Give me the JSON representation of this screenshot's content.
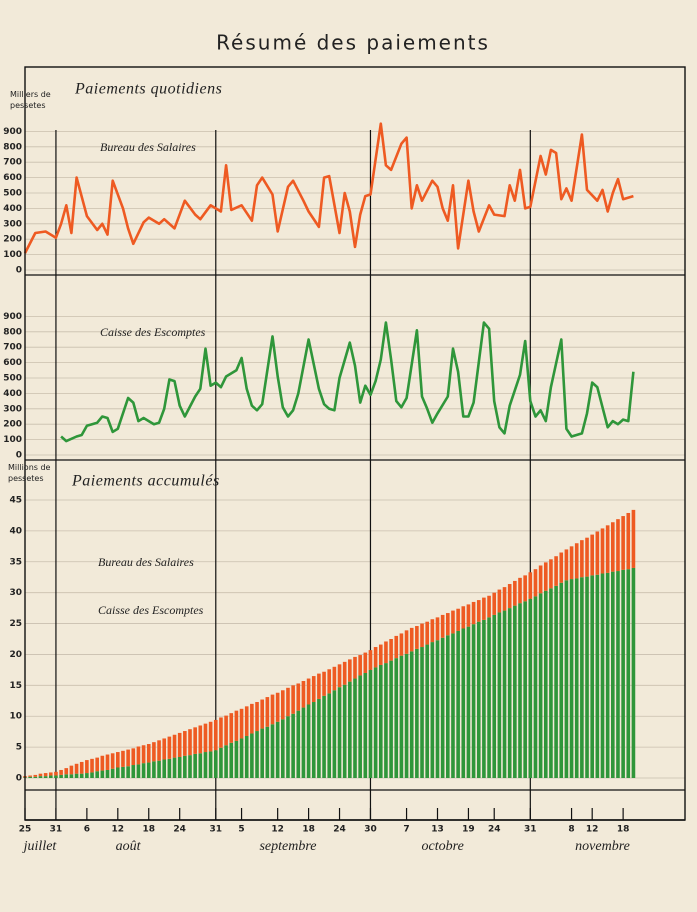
{
  "title": "Résumé des paiements",
  "chart_data": [
    {
      "type": "line",
      "title": "Paiements quotidiens",
      "ylabel": "Milliers de pessetes",
      "xlim": [
        0,
        128
      ],
      "ylim": [
        0,
        1000
      ],
      "yticks": [
        0,
        100,
        200,
        300,
        400,
        500,
        600,
        700,
        800,
        900
      ],
      "grid": true,
      "xgrid": [
        6,
        37,
        67,
        98
      ],
      "series": [
        {
          "name": "Bureau des Salaires",
          "color": "#ee5a22",
          "x": [
            0,
            2,
            4,
            6,
            7,
            8,
            9,
            10,
            12,
            14,
            15,
            16,
            17,
            19,
            20,
            21,
            23,
            24,
            26,
            27,
            29,
            31,
            33,
            34,
            36,
            38,
            39,
            40,
            42,
            44,
            45,
            46,
            48,
            49,
            51,
            52,
            54,
            55,
            57,
            58,
            59,
            61,
            62,
            63,
            64,
            65,
            66,
            67,
            69,
            70,
            71,
            73,
            74,
            75,
            76,
            77,
            79,
            80,
            81,
            82,
            83,
            84,
            86,
            87,
            88,
            90,
            91,
            93,
            94,
            95,
            96,
            97,
            98,
            100,
            101,
            102,
            103,
            104,
            105,
            106,
            108,
            109,
            111,
            112,
            113,
            114,
            115,
            116,
            118
          ],
          "values": [
            110,
            240,
            250,
            210,
            300,
            420,
            240,
            600,
            350,
            260,
            300,
            230,
            580,
            400,
            270,
            170,
            310,
            340,
            300,
            330,
            270,
            450,
            360,
            330,
            420,
            380,
            680,
            390,
            420,
            320,
            550,
            600,
            490,
            250,
            540,
            580,
            450,
            380,
            280,
            600,
            610,
            240,
            500,
            380,
            150,
            360,
            480,
            490,
            950,
            680,
            650,
            820,
            860,
            400,
            550,
            450,
            580,
            540,
            400,
            320,
            550,
            140,
            580,
            380,
            250,
            420,
            360,
            350,
            550,
            450,
            650,
            400,
            410,
            740,
            620,
            780,
            760,
            460,
            530,
            450,
            880,
            520,
            450,
            520,
            380,
            500,
            590,
            460,
            480
          ]
        }
      ]
    },
    {
      "type": "line",
      "xlim": [
        0,
        128
      ],
      "ylim": [
        0,
        1000
      ],
      "yticks": [
        0,
        100,
        200,
        300,
        400,
        500,
        600,
        700,
        800,
        900
      ],
      "grid": true,
      "xgrid": [
        6,
        37,
        67,
        98
      ],
      "series": [
        {
          "name": "Caisse des Escomptes",
          "color": "#2f963a",
          "x": [
            7,
            8,
            10,
            11,
            12,
            14,
            15,
            16,
            17,
            18,
            20,
            21,
            22,
            23,
            25,
            26,
            27,
            28,
            29,
            30,
            31,
            33,
            34,
            35,
            36,
            37,
            38,
            39,
            41,
            42,
            43,
            44,
            45,
            46,
            48,
            49,
            50,
            51,
            52,
            53,
            55,
            57,
            58,
            59,
            60,
            61,
            63,
            64,
            65,
            66,
            67,
            68,
            69,
            70,
            71,
            72,
            73,
            74,
            76,
            77,
            78,
            79,
            80,
            82,
            83,
            84,
            85,
            86,
            87,
            89,
            90,
            91,
            92,
            93,
            94,
            96,
            97,
            98,
            99,
            100,
            101,
            102,
            104,
            105,
            106,
            108,
            109,
            110,
            111,
            113,
            114,
            115,
            116,
            117,
            118
          ],
          "values": [
            120,
            90,
            120,
            130,
            190,
            210,
            250,
            240,
            150,
            170,
            370,
            340,
            220,
            240,
            200,
            210,
            300,
            490,
            480,
            320,
            250,
            380,
            430,
            690,
            450,
            470,
            440,
            510,
            550,
            630,
            430,
            320,
            290,
            330,
            770,
            510,
            310,
            250,
            290,
            400,
            750,
            430,
            330,
            300,
            290,
            500,
            730,
            580,
            340,
            450,
            390,
            480,
            620,
            860,
            620,
            350,
            310,
            370,
            810,
            380,
            300,
            210,
            270,
            380,
            690,
            540,
            250,
            250,
            340,
            860,
            820,
            350,
            180,
            140,
            320,
            520,
            740,
            350,
            250,
            290,
            220,
            440,
            750,
            170,
            120,
            140,
            270,
            470,
            440,
            180,
            220,
            200,
            230,
            220,
            540
          ]
        }
      ]
    },
    {
      "type": "bar",
      "stacked": true,
      "title": "Paiements accumulés",
      "ylabel": "Millions de pessetes",
      "xlim": [
        0,
        128
      ],
      "ylim": [
        0,
        45
      ],
      "yticks": [
        0,
        5,
        10,
        15,
        20,
        25,
        30,
        35,
        40,
        45
      ],
      "grid": true,
      "xgrid": [
        6,
        37,
        67,
        98
      ],
      "xticks": [
        {
          "value": 0,
          "label": "25"
        },
        {
          "value": 6,
          "label": "31"
        },
        {
          "value": 12,
          "label": "6"
        },
        {
          "value": 18,
          "label": "12"
        },
        {
          "value": 24,
          "label": "18"
        },
        {
          "value": 30,
          "label": "24"
        },
        {
          "value": 37,
          "label": "31"
        },
        {
          "value": 42,
          "label": "5"
        },
        {
          "value": 49,
          "label": "12"
        },
        {
          "value": 55,
          "label": "18"
        },
        {
          "value": 61,
          "label": "24"
        },
        {
          "value": 67,
          "label": "30"
        },
        {
          "value": 74,
          "label": "7"
        },
        {
          "value": 80,
          "label": "13"
        },
        {
          "value": 86,
          "label": "19"
        },
        {
          "value": 91,
          "label": "24"
        },
        {
          "value": 98,
          "label": "31"
        },
        {
          "value": 106,
          "label": "8"
        },
        {
          "value": 110,
          "label": "12"
        },
        {
          "value": 116,
          "label": "18"
        }
      ],
      "month_labels": [
        {
          "value": 1,
          "label": "juillet"
        },
        {
          "value": 20,
          "label": "août"
        },
        {
          "value": 51,
          "label": "septembre"
        },
        {
          "value": 81,
          "label": "octobre"
        },
        {
          "value": 112,
          "label": "novembre"
        }
      ],
      "x": [
        0,
        1,
        2,
        3,
        4,
        5,
        6,
        7,
        8,
        9,
        10,
        11,
        12,
        13,
        14,
        15,
        16,
        17,
        18,
        19,
        20,
        21,
        22,
        23,
        24,
        25,
        26,
        27,
        28,
        29,
        30,
        31,
        32,
        33,
        34,
        35,
        36,
        37,
        38,
        39,
        40,
        41,
        42,
        43,
        44,
        45,
        46,
        47,
        48,
        49,
        50,
        51,
        52,
        53,
        54,
        55,
        56,
        57,
        58,
        59,
        60,
        61,
        62,
        63,
        64,
        65,
        66,
        67,
        68,
        69,
        70,
        71,
        72,
        73,
        74,
        75,
        76,
        77,
        78,
        79,
        80,
        81,
        82,
        83,
        84,
        85,
        86,
        87,
        88,
        89,
        90,
        91,
        92,
        93,
        94,
        95,
        96,
        97,
        98,
        99,
        100,
        101,
        102,
        103,
        104,
        105,
        106,
        107,
        108,
        109,
        110,
        111,
        112,
        113,
        114,
        115,
        116,
        117,
        118
      ],
      "series": [
        {
          "name": "Bureau des Salaires",
          "color": "#ee5a22",
          "values": [
            0.2,
            0.2,
            0.3,
            0.4,
            0.5,
            0.5,
            0.6,
            0.8,
            1.0,
            1.4,
            1.6,
            1.9,
            2.1,
            2.2,
            2.2,
            2.4,
            2.5,
            2.5,
            2.5,
            2.6,
            2.7,
            2.7,
            2.9,
            2.9,
            3.0,
            3.1,
            3.3,
            3.4,
            3.6,
            3.7,
            3.9,
            4.0,
            4.2,
            4.3,
            4.5,
            4.6,
            4.8,
            4.9,
            4.9,
            4.8,
            4.8,
            4.9,
            4.8,
            4.8,
            4.8,
            4.7,
            4.7,
            4.8,
            4.8,
            4.7,
            4.7,
            4.6,
            4.6,
            4.4,
            4.3,
            4.2,
            4.2,
            4.1,
            3.9,
            3.9,
            3.8,
            3.7,
            3.7,
            3.6,
            3.5,
            3.3,
            3.3,
            3.2,
            3.3,
            3.3,
            3.5,
            3.5,
            3.6,
            3.6,
            3.8,
            3.8,
            3.7,
            3.8,
            3.7,
            3.7,
            3.7,
            3.7,
            3.6,
            3.7,
            3.6,
            3.6,
            3.6,
            3.6,
            3.5,
            3.6,
            3.5,
            3.6,
            3.7,
            3.8,
            3.9,
            4.0,
            4.1,
            4.2,
            4.3,
            4.4,
            4.5,
            4.6,
            4.7,
            4.8,
            4.9,
            5.0,
            5.3,
            5.7,
            6.0,
            6.3,
            6.6,
            7.0,
            7.3,
            7.7,
            8.0,
            8.4,
            8.7,
            9.1,
            9.4
          ]
        },
        {
          "name": "Caisse des Escomptes",
          "color": "#2f963a",
          "values": [
            0.1,
            0.2,
            0.2,
            0.3,
            0.3,
            0.4,
            0.4,
            0.5,
            0.6,
            0.6,
            0.7,
            0.7,
            0.8,
            0.9,
            1.1,
            1.2,
            1.3,
            1.5,
            1.7,
            1.8,
            1.9,
            2.1,
            2.2,
            2.4,
            2.5,
            2.7,
            2.8,
            3.0,
            3.1,
            3.3,
            3.4,
            3.6,
            3.7,
            3.9,
            4.0,
            4.2,
            4.3,
            4.5,
            4.9,
            5.3,
            5.7,
            6.0,
            6.4,
            6.8,
            7.2,
            7.6,
            8.0,
            8.3,
            8.7,
            9.1,
            9.5,
            10.0,
            10.4,
            10.9,
            11.4,
            11.9,
            12.3,
            12.8,
            13.3,
            13.7,
            14.2,
            14.7,
            15.1,
            15.6,
            16.1,
            16.6,
            17.0,
            17.5,
            17.9,
            18.3,
            18.6,
            19.0,
            19.4,
            19.8,
            20.1,
            20.5,
            20.9,
            21.2,
            21.6,
            22.0,
            22.3,
            22.7,
            23.1,
            23.4,
            23.8,
            24.2,
            24.5,
            24.9,
            25.3,
            25.6,
            26.0,
            26.4,
            26.8,
            27.1,
            27.5,
            27.9,
            28.3,
            28.6,
            29.0,
            29.4,
            29.9,
            30.3,
            30.7,
            31.1,
            31.6,
            32.0,
            32.2,
            32.3,
            32.5,
            32.6,
            32.8,
            32.9,
            33.1,
            33.2,
            33.4,
            33.5,
            33.7,
            33.8,
            34.0
          ]
        }
      ]
    }
  ]
}
